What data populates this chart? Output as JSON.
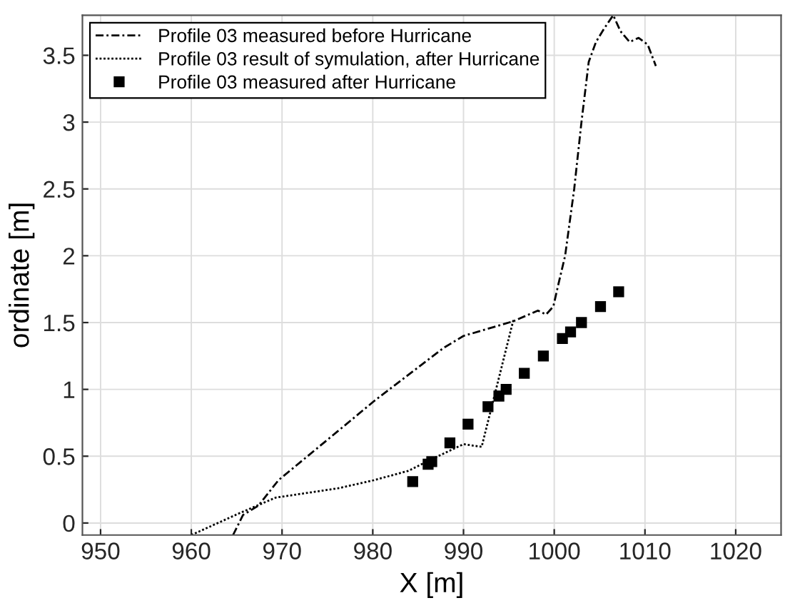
{
  "chart_data": {
    "type": "line",
    "xlabel": "X [m]",
    "ylabel": "ordinate [m]",
    "xlim": [
      948,
      1025
    ],
    "ylim": [
      -0.09,
      3.8
    ],
    "xticks": [
      950,
      960,
      970,
      980,
      990,
      1000,
      1010,
      1020
    ],
    "yticks": [
      0,
      0.5,
      1,
      1.5,
      2,
      2.5,
      3,
      3.5
    ],
    "grid": true,
    "legend": "top left",
    "series": [
      {
        "name": "Profile 03 measured before Hurricane",
        "line_style": "dashdot",
        "color": "#000000",
        "x": [
          964.6,
          965.7,
          967.4,
          969.6,
          976.2,
          980.1,
          987.8,
          990,
          995.5,
          998.2,
          999.1,
          999.9,
          1000.4,
          1001.2,
          1002.2,
          1003,
          1003.8,
          1004.6,
          1005.5,
          1006.5,
          1007.3,
          1008.3,
          1009.3,
          1010.3,
          1011.2
        ],
        "values": [
          -0.09,
          0.06,
          0.13,
          0.32,
          0.69,
          0.91,
          1.31,
          1.4,
          1.51,
          1.59,
          1.56,
          1.62,
          1.77,
          2.0,
          2.5,
          3.0,
          3.45,
          3.6,
          3.7,
          3.8,
          3.68,
          3.6,
          3.63,
          3.58,
          3.42
        ]
      },
      {
        "name": "Profile 03 result of symulation, after Hurricane",
        "line_style": "dotted",
        "color": "#000000",
        "x": [
          960,
          965.2,
          969.3,
          976.2,
          980.1,
          983.9,
          987.2,
          990,
          992,
          995.5
        ],
        "values": [
          -0.09,
          0.07,
          0.19,
          0.26,
          0.32,
          0.39,
          0.5,
          0.59,
          0.57,
          1.52
        ]
      },
      {
        "name": "Profile 03 measured after Hurricane",
        "type": "scatter",
        "marker": "square",
        "color": "#000000",
        "x": [
          984.4,
          986.1,
          986.5,
          988.5,
          990.5,
          992.7,
          993.9,
          994.7,
          996.7,
          998.8,
          1000.9,
          1001.8,
          1003,
          1005.1,
          1007.1
        ],
        "values": [
          0.31,
          0.44,
          0.46,
          0.6,
          0.74,
          0.87,
          0.95,
          1.0,
          1.12,
          1.25,
          1.38,
          1.43,
          1.5,
          1.62,
          1.73
        ]
      }
    ]
  }
}
